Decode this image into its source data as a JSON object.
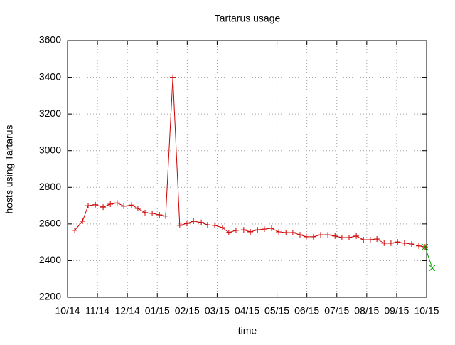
{
  "chart_data": {
    "type": "line",
    "title": "Tartarus usage",
    "x_label": "time",
    "y_label": "hosts using Tartarus",
    "xlim": [
      0,
      12
    ],
    "ylim": [
      2200,
      3600
    ],
    "xticks": [
      {
        "value": 0,
        "label": "10/14"
      },
      {
        "value": 1,
        "label": "11/14"
      },
      {
        "value": 2,
        "label": "12/14"
      },
      {
        "value": 3,
        "label": "01/15"
      },
      {
        "value": 4,
        "label": "02/15"
      },
      {
        "value": 5,
        "label": "03/15"
      },
      {
        "value": 6,
        "label": "04/15"
      },
      {
        "value": 7,
        "label": "05/15"
      },
      {
        "value": 8,
        "label": "06/15"
      },
      {
        "value": 9,
        "label": "07/15"
      },
      {
        "value": 10,
        "label": "08/15"
      },
      {
        "value": 11,
        "label": "09/15"
      },
      {
        "value": 12,
        "label": "10/15"
      }
    ],
    "yticks": [
      2200,
      2400,
      2600,
      2800,
      3000,
      3200,
      3400,
      3600
    ],
    "grid": true,
    "series": [
      {
        "color": "#cc0000",
        "marker": "+",
        "x": [
          0.24,
          0.5,
          0.69,
          0.93,
          1.19,
          1.43,
          1.66,
          1.88,
          2.14,
          2.35,
          2.59,
          2.83,
          3.07,
          3.28,
          3.52,
          3.75,
          3.99,
          4.21,
          4.47,
          4.68,
          4.92,
          5.18,
          5.39,
          5.63,
          5.89,
          6.11,
          6.35,
          6.58,
          6.82,
          7.06,
          7.3,
          7.53,
          7.77,
          7.98,
          8.22,
          8.46,
          8.7,
          8.94,
          9.17,
          9.41,
          9.65,
          9.89,
          10.12,
          10.34,
          10.58,
          10.81,
          11.03,
          11.26,
          11.5,
          11.74,
          11.95
        ],
        "values": [
          2565,
          2615,
          2700,
          2705,
          2692,
          2708,
          2715,
          2697,
          2703,
          2685,
          2662,
          2658,
          2650,
          2643,
          3400,
          2592,
          2603,
          2615,
          2608,
          2595,
          2592,
          2580,
          2553,
          2565,
          2568,
          2557,
          2568,
          2572,
          2576,
          2557,
          2553,
          2553,
          2541,
          2530,
          2530,
          2541,
          2541,
          2534,
          2526,
          2526,
          2534,
          2514,
          2514,
          2518,
          2495,
          2495,
          2502,
          2495,
          2491,
          2480,
          2475
        ]
      },
      {
        "color": "#00a000",
        "marker": "x",
        "x": [
          11.95,
          12.19
        ],
        "values": [
          2475,
          2360
        ]
      }
    ]
  }
}
